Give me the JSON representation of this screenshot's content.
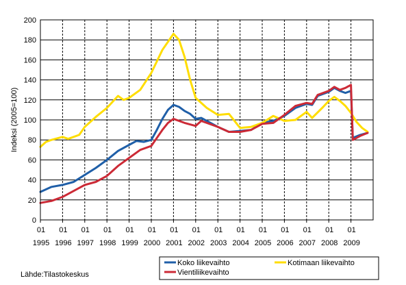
{
  "chart_data": {
    "type": "line",
    "ylabel": "Indeksi (2005=100)",
    "ylim": [
      0,
      200
    ],
    "yticks": [
      0,
      20,
      40,
      60,
      80,
      100,
      120,
      140,
      160,
      180,
      200
    ],
    "xlim": [
      "1995-01",
      "2009-12"
    ],
    "x_tick_top": "01",
    "x_years": [
      "1995",
      "1996",
      "1997",
      "1998",
      "1999",
      "2000",
      "2001",
      "2002",
      "2003",
      "2004",
      "2005",
      "2006",
      "2007",
      "2008",
      "2009"
    ],
    "grid": "vertical dashed at each January",
    "legend_position": "bottom",
    "source": "Lähde:Tilastokeskus",
    "series": [
      {
        "name": "Koko liikevaihto",
        "color": "#1f5fa8",
        "points": [
          [
            "1995-01",
            28
          ],
          [
            "1995-07",
            33
          ],
          [
            "1996-01",
            35
          ],
          [
            "1996-07",
            38
          ],
          [
            "1997-01",
            45
          ],
          [
            "1997-07",
            52
          ],
          [
            "1998-01",
            60
          ],
          [
            "1998-07",
            69
          ],
          [
            "1999-01",
            75
          ],
          [
            "1999-05",
            79
          ],
          [
            "1999-09",
            78
          ],
          [
            "2000-01",
            80
          ],
          [
            "2000-04",
            90
          ],
          [
            "2000-07",
            101
          ],
          [
            "2000-10",
            110
          ],
          [
            "2001-01",
            115
          ],
          [
            "2001-04",
            113
          ],
          [
            "2001-07",
            109
          ],
          [
            "2001-10",
            106
          ],
          [
            "2002-01",
            101
          ],
          [
            "2002-04",
            102
          ],
          [
            "2002-07",
            99
          ],
          [
            "2003-01",
            93
          ],
          [
            "2003-07",
            88
          ],
          [
            "2004-01",
            89
          ],
          [
            "2004-07",
            90
          ],
          [
            "2005-01",
            97
          ],
          [
            "2005-07",
            99
          ],
          [
            "2006-01",
            104
          ],
          [
            "2006-07",
            112
          ],
          [
            "2007-01",
            116
          ],
          [
            "2007-04",
            115
          ],
          [
            "2007-07",
            124
          ],
          [
            "2008-01",
            128
          ],
          [
            "2008-04",
            132
          ],
          [
            "2008-07",
            129
          ],
          [
            "2008-10",
            127
          ],
          [
            "2009-01",
            129
          ],
          [
            "2009-02",
            82
          ],
          [
            "2009-06",
            85
          ],
          [
            "2009-10",
            87
          ]
        ]
      },
      {
        "name": "Kotimaan liikevaihto",
        "color": "#ffdd00",
        "points": [
          [
            "1995-01",
            73
          ],
          [
            "1995-04",
            78
          ],
          [
            "1995-07",
            80
          ],
          [
            "1996-01",
            83
          ],
          [
            "1996-04",
            81
          ],
          [
            "1996-10",
            85
          ],
          [
            "1997-01",
            93
          ],
          [
            "1997-07",
            103
          ],
          [
            "1998-01",
            112
          ],
          [
            "1998-07",
            124
          ],
          [
            "1998-10",
            120
          ],
          [
            "1999-01",
            122
          ],
          [
            "1999-07",
            130
          ],
          [
            "2000-01",
            147
          ],
          [
            "2000-07",
            170
          ],
          [
            "2001-01",
            186
          ],
          [
            "2001-04",
            180
          ],
          [
            "2001-07",
            163
          ],
          [
            "2001-10",
            140
          ],
          [
            "2002-01",
            122
          ],
          [
            "2002-07",
            112
          ],
          [
            "2003-01",
            105
          ],
          [
            "2003-07",
            106
          ],
          [
            "2004-01",
            92
          ],
          [
            "2004-07",
            93
          ],
          [
            "2005-01",
            97
          ],
          [
            "2005-07",
            104
          ],
          [
            "2006-01",
            99
          ],
          [
            "2006-07",
            100
          ],
          [
            "2007-01",
            108
          ],
          [
            "2007-04",
            102
          ],
          [
            "2007-10",
            113
          ],
          [
            "2008-01",
            119
          ],
          [
            "2008-04",
            123
          ],
          [
            "2008-07",
            119
          ],
          [
            "2008-10",
            114
          ],
          [
            "2009-01",
            107
          ],
          [
            "2009-04",
            98
          ],
          [
            "2009-07",
            92
          ],
          [
            "2009-10",
            88
          ]
        ]
      },
      {
        "name": "Vientiliikevaihto",
        "color": "#cc2a36",
        "points": [
          [
            "1995-01",
            17
          ],
          [
            "1995-07",
            19
          ],
          [
            "1996-01",
            23
          ],
          [
            "1996-07",
            29
          ],
          [
            "1997-01",
            35
          ],
          [
            "1997-07",
            38
          ],
          [
            "1998-01",
            44
          ],
          [
            "1998-07",
            54
          ],
          [
            "1999-01",
            62
          ],
          [
            "1999-07",
            70
          ],
          [
            "2000-01",
            74
          ],
          [
            "2000-04",
            82
          ],
          [
            "2000-07",
            90
          ],
          [
            "2000-10",
            97
          ],
          [
            "2001-01",
            101
          ],
          [
            "2001-07",
            97
          ],
          [
            "2002-01",
            94
          ],
          [
            "2002-04",
            99
          ],
          [
            "2002-07",
            97
          ],
          [
            "2003-01",
            93
          ],
          [
            "2003-07",
            88
          ],
          [
            "2004-01",
            88
          ],
          [
            "2004-07",
            90
          ],
          [
            "2005-01",
            96
          ],
          [
            "2005-07",
            97
          ],
          [
            "2006-01",
            105
          ],
          [
            "2006-07",
            114
          ],
          [
            "2007-01",
            117
          ],
          [
            "2007-04",
            116
          ],
          [
            "2007-07",
            125
          ],
          [
            "2008-01",
            129
          ],
          [
            "2008-04",
            133
          ],
          [
            "2008-07",
            130
          ],
          [
            "2008-10",
            132
          ],
          [
            "2009-01",
            135
          ],
          [
            "2009-02",
            80
          ],
          [
            "2009-06",
            84
          ],
          [
            "2009-10",
            87
          ]
        ]
      }
    ]
  }
}
